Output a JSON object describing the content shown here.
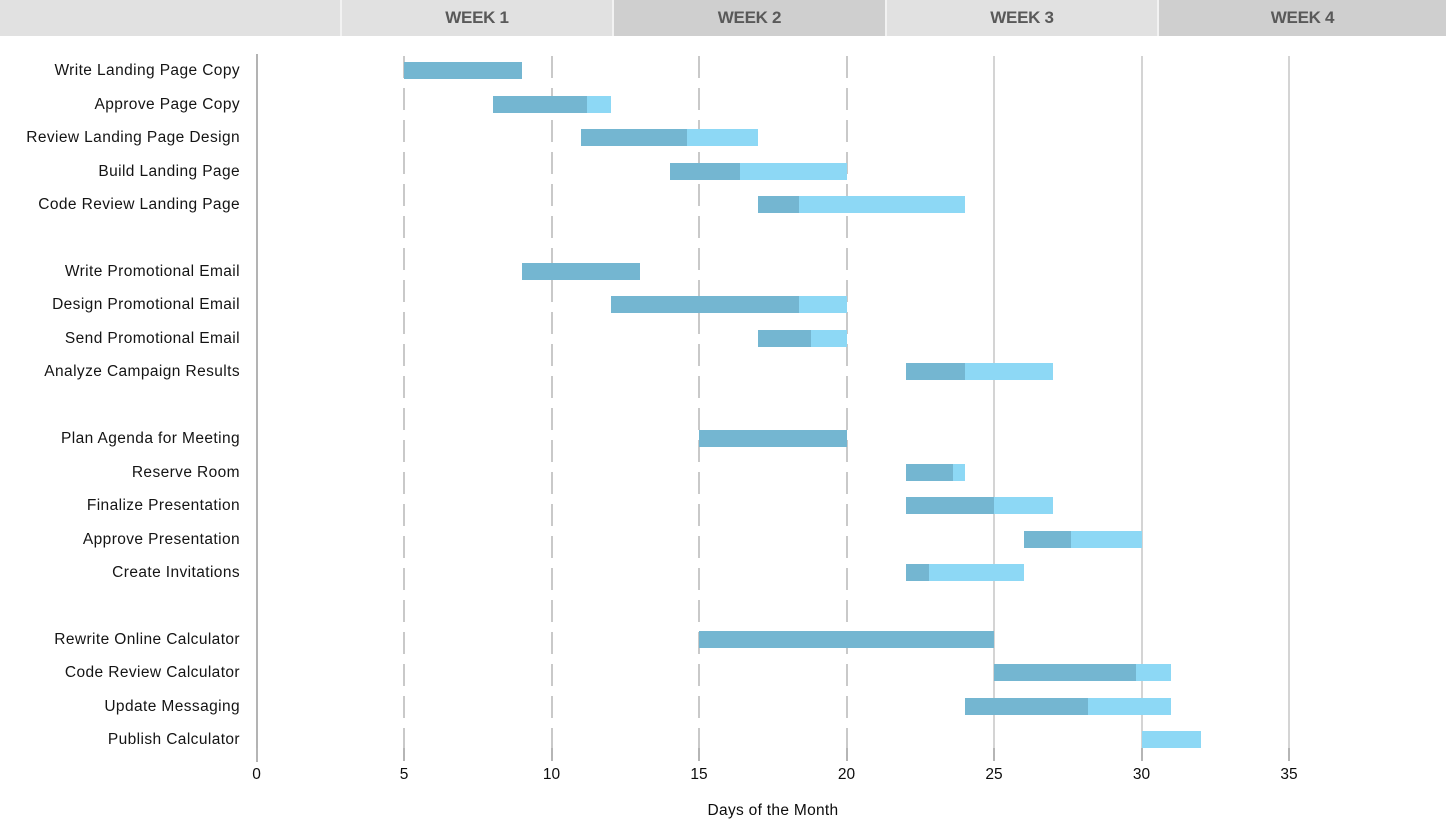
{
  "header": {
    "weeks": [
      "WEEK 1",
      "WEEK 2",
      "WEEK 3",
      "WEEK 4"
    ]
  },
  "colors": {
    "bar_complete": "#74B6D1",
    "bar_remaining": "#8DD8F5",
    "header_light": "#E1E1E1",
    "header_dark": "#CFCFCF",
    "header_text": "#595959",
    "gridline_dashed": "#C9C9C9",
    "gridline_solid": "#D4D4D4",
    "axis_line": "#B3B3B3"
  },
  "chart_data": {
    "type": "bar",
    "subtype": "gantt",
    "title": "",
    "xlabel": "Days of the Month",
    "x_ticks": [
      0,
      5,
      10,
      15,
      20,
      25,
      30,
      35
    ],
    "xlim": [
      0,
      40
    ],
    "dashed_gridlines": [
      5,
      10,
      15,
      20
    ],
    "solid_gridlines": [
      25,
      30,
      35
    ],
    "legend": "none",
    "bar_semantics": "darker segment = percent complete, lighter segment = remaining",
    "groups": [
      [
        {
          "label": "Write Landing Page Copy",
          "start": 5,
          "end": 9,
          "percent_complete": 100
        },
        {
          "label": "Approve Page Copy",
          "start": 8,
          "end": 12,
          "percent_complete": 80
        },
        {
          "label": "Review Landing Page Design",
          "start": 11,
          "end": 17,
          "percent_complete": 60
        },
        {
          "label": "Build Landing Page",
          "start": 14,
          "end": 20,
          "percent_complete": 40
        },
        {
          "label": "Code Review Landing Page",
          "start": 17,
          "end": 24,
          "percent_complete": 20
        }
      ],
      [
        {
          "label": "Write Promotional Email",
          "start": 9,
          "end": 13,
          "percent_complete": 100
        },
        {
          "label": "Design Promotional Email",
          "start": 12,
          "end": 20,
          "percent_complete": 80
        },
        {
          "label": "Send Promotional Email",
          "start": 17,
          "end": 20,
          "percent_complete": 60
        },
        {
          "label": "Analyze Campaign Results",
          "start": 22,
          "end": 27,
          "percent_complete": 40
        }
      ],
      [
        {
          "label": "Plan Agenda for Meeting",
          "start": 15,
          "end": 20,
          "percent_complete": 100
        },
        {
          "label": "Reserve Room",
          "start": 22,
          "end": 24,
          "percent_complete": 80
        },
        {
          "label": "Finalize Presentation",
          "start": 22,
          "end": 27,
          "percent_complete": 60
        },
        {
          "label": "Approve Presentation",
          "start": 26,
          "end": 30,
          "percent_complete": 40
        },
        {
          "label": "Create Invitations",
          "start": 22,
          "end": 26,
          "percent_complete": 20
        }
      ],
      [
        {
          "label": "Rewrite Online Calculator",
          "start": 15,
          "end": 25,
          "percent_complete": 100
        },
        {
          "label": "Code Review Calculator",
          "start": 25,
          "end": 31,
          "percent_complete": 80
        },
        {
          "label": "Update Messaging",
          "start": 24,
          "end": 31,
          "percent_complete": 60
        },
        {
          "label": "Publish Calculator",
          "start": 30,
          "end": 32,
          "percent_complete": 0
        }
      ]
    ]
  }
}
